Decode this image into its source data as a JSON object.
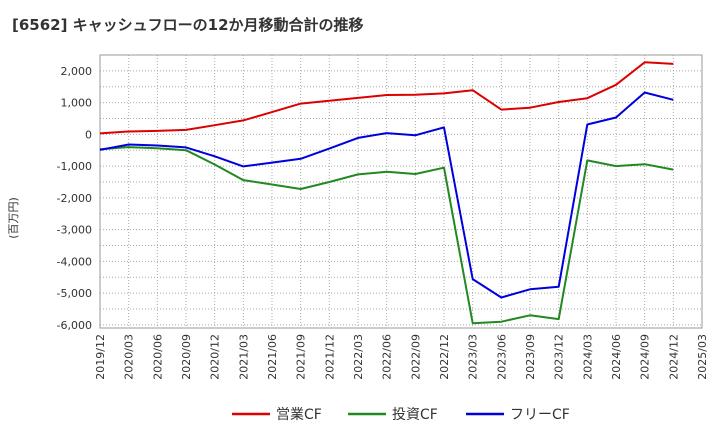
{
  "chart_data": {
    "type": "line",
    "title": "[6562]  キャッシュフローの12か月移動合計の推移",
    "ylabel": "(百万円)",
    "xlabel": "",
    "ylim": [
      -6100,
      2500
    ],
    "yticks": [
      2000,
      1000,
      0,
      -1000,
      -2000,
      -3000,
      -4000,
      -5000,
      -6000
    ],
    "ytick_labels": [
      "2,000",
      "1,000",
      "0",
      "-1,000",
      "-2,000",
      "-3,000",
      "-4,000",
      "-5,000",
      "-6,000"
    ],
    "categories": [
      "2019/12",
      "2020/03",
      "2020/06",
      "2020/09",
      "2020/12",
      "2021/03",
      "2021/06",
      "2021/09",
      "2021/12",
      "2022/03",
      "2022/06",
      "2022/09",
      "2022/12",
      "2023/03",
      "2023/06",
      "2023/09",
      "2023/12",
      "2024/03",
      "2024/06",
      "2024/09",
      "2024/12",
      "2025/03"
    ],
    "grid": true,
    "legend_position": "bottom",
    "series": [
      {
        "name": "営業CF",
        "color": "#dd0000",
        "values": [
          30,
          90,
          110,
          140,
          290,
          440,
          700,
          970,
          1060,
          1150,
          1240,
          1250,
          1290,
          1390,
          780,
          840,
          1020,
          1140,
          1560,
          2270,
          2220,
          null
        ]
      },
      {
        "name": "投資CF",
        "color": "#228822",
        "values": [
          -470,
          -400,
          -440,
          -500,
          -950,
          -1440,
          -1580,
          -1720,
          -1500,
          -1260,
          -1180,
          -1250,
          -1050,
          -5950,
          -5900,
          -5700,
          -5820,
          -820,
          -1000,
          -940,
          -1110,
          null
        ]
      },
      {
        "name": "フリーCF",
        "color": "#0000dd",
        "values": [
          -490,
          -320,
          -350,
          -410,
          -690,
          -1010,
          -890,
          -770,
          -450,
          -110,
          40,
          -30,
          220,
          -4560,
          -5140,
          -4880,
          -4800,
          310,
          530,
          1320,
          1090,
          null
        ]
      }
    ]
  }
}
